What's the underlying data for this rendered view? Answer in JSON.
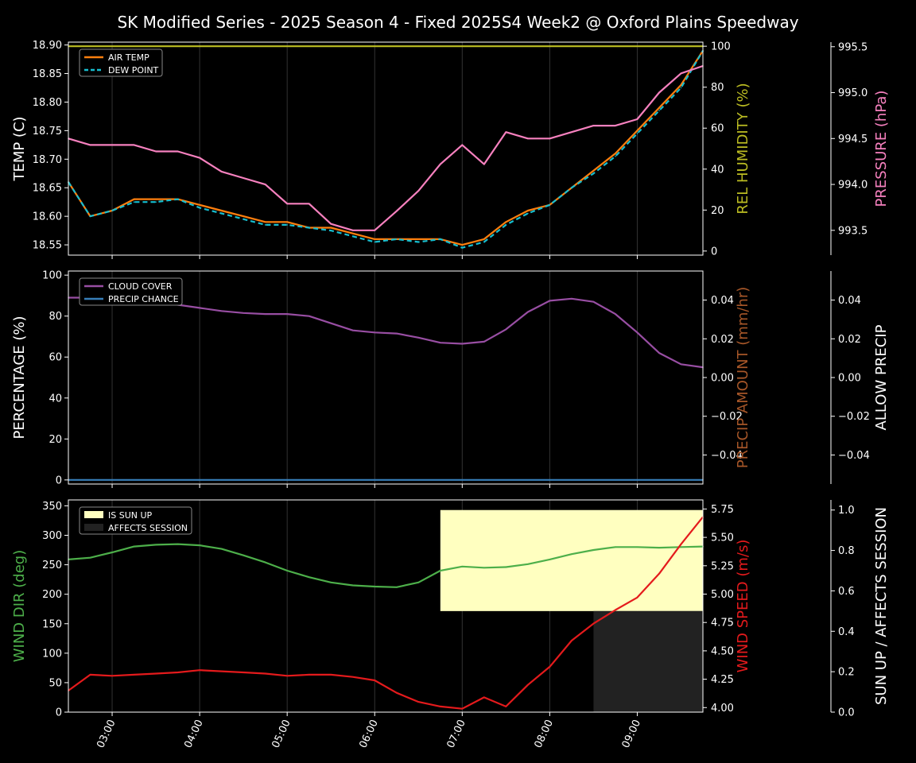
{
  "title": "SK Modified Series - 2025 Season 4 - Fixed 2025S4 Week2 @ Oxford Plains Speedway",
  "colors": {
    "background": "#000000",
    "axis": "#ffffff",
    "air_temp": "#ff7f0e",
    "dew_point": "#17becf",
    "humidity": "#bcbd22",
    "pressure": "#f781bf",
    "cloud": "#984ea3",
    "precip_chance": "#377eb8",
    "precip_amount": "#a65628",
    "wind_dir": "#4daf4a",
    "wind_speed": "#e41a1c",
    "sun_up": "#ffffc0",
    "affects_session": "#222222"
  },
  "chart_data": [
    {
      "type": "line",
      "panel": "weather",
      "x": [
        "02:30",
        "02:45",
        "03:00",
        "03:15",
        "03:30",
        "03:45",
        "04:00",
        "04:15",
        "04:30",
        "04:45",
        "05:00",
        "05:15",
        "05:30",
        "05:45",
        "06:00",
        "06:15",
        "06:30",
        "06:45",
        "07:00",
        "07:15",
        "07:30",
        "07:45",
        "08:00",
        "08:15",
        "08:30",
        "08:45",
        "09:00",
        "09:15",
        "09:30",
        "09:45"
      ],
      "xticks": [
        "03:00",
        "04:00",
        "05:00",
        "06:00",
        "07:00",
        "08:00",
        "09:00"
      ],
      "axes": {
        "left": {
          "label": "TEMP (C)",
          "ylim": [
            18.532,
            18.905
          ],
          "ticks": [
            "18.55",
            "18.60",
            "18.65",
            "18.70",
            "18.75",
            "18.80",
            "18.85",
            "18.90"
          ]
        },
        "right": {
          "label": "REL HUMIDITY (%)",
          "ylim": [
            -2,
            102
          ],
          "ticks": [
            "0",
            "20",
            "40",
            "60",
            "80",
            "100"
          ]
        },
        "right2": {
          "label": "PRESSURE (hPa)",
          "ylim": [
            993.23,
            995.55
          ],
          "ticks": [
            "993.5",
            "994.0",
            "994.5",
            "995.0",
            "995.5"
          ]
        }
      },
      "legend": {
        "placement": "top-left",
        "entries": [
          "AIR TEMP",
          "DEW POINT"
        ]
      },
      "series": [
        {
          "name": "AIR TEMP",
          "axis": "left",
          "color": "air_temp",
          "values": [
            18.66,
            18.6,
            18.61,
            18.63,
            18.63,
            18.63,
            18.62,
            18.61,
            18.6,
            18.59,
            18.59,
            18.58,
            18.58,
            18.57,
            18.56,
            18.56,
            18.56,
            18.56,
            18.55,
            18.56,
            18.59,
            18.61,
            18.62,
            18.65,
            18.68,
            18.71,
            18.75,
            18.79,
            18.83,
            18.89
          ]
        },
        {
          "name": "DEW POINT",
          "axis": "left",
          "color": "dew_point",
          "dashed": true,
          "values": [
            18.66,
            18.6,
            18.61,
            18.625,
            18.625,
            18.63,
            18.615,
            18.605,
            18.595,
            18.585,
            18.585,
            18.58,
            18.575,
            18.565,
            18.555,
            18.56,
            18.555,
            18.56,
            18.545,
            18.555,
            18.585,
            18.605,
            18.62,
            18.65,
            18.675,
            18.705,
            18.745,
            18.785,
            18.825,
            18.89
          ]
        },
        {
          "axis": "right",
          "color": "humidity",
          "values": [
            100,
            100,
            100,
            100,
            100,
            100,
            100,
            100,
            100,
            100,
            100,
            100,
            100,
            100,
            100,
            100,
            100,
            100,
            100,
            100,
            100,
            100,
            100,
            100,
            100,
            100,
            100,
            100,
            100,
            100
          ]
        },
        {
          "axis": "right2",
          "color": "pressure",
          "values": [
            994.5,
            994.43,
            994.43,
            994.43,
            994.36,
            994.36,
            994.29,
            994.14,
            994.07,
            994.0,
            993.79,
            993.79,
            993.57,
            993.5,
            993.5,
            993.71,
            993.93,
            994.22,
            994.43,
            994.22,
            994.57,
            994.5,
            994.5,
            994.57,
            994.64,
            994.64,
            994.71,
            995.0,
            995.21,
            995.29
          ]
        }
      ]
    },
    {
      "type": "line",
      "panel": "clouds",
      "x": [
        "02:30",
        "02:45",
        "03:00",
        "03:15",
        "03:30",
        "03:45",
        "04:00",
        "04:15",
        "04:30",
        "04:45",
        "05:00",
        "05:15",
        "05:30",
        "05:45",
        "06:00",
        "06:15",
        "06:30",
        "06:45",
        "07:00",
        "07:15",
        "07:30",
        "07:45",
        "08:00",
        "08:15",
        "08:30",
        "08:45",
        "09:00",
        "09:15",
        "09:30",
        "09:45"
      ],
      "axes": {
        "left": {
          "label": "PERCENTAGE (%)",
          "ylim": [
            -2,
            102
          ],
          "ticks": [
            "0",
            "20",
            "40",
            "60",
            "80",
            "100"
          ]
        },
        "right": {
          "label": "PRECIP AMOUNT (mm/hr)",
          "ylim": [
            -0.055,
            0.055
          ],
          "ticks": [
            "−0.04",
            "−0.02",
            "0.00",
            "0.02",
            "0.04"
          ]
        },
        "right2": {
          "label": "ALLOW PRECIP",
          "ylim": [
            -0.055,
            0.055
          ],
          "ticks": [
            "−0.04",
            "−0.02",
            "0.00",
            "0.02",
            "0.04"
          ]
        }
      },
      "legend": {
        "placement": "top-left",
        "entries": [
          "CLOUD COVER",
          "PRECIP CHANCE"
        ]
      },
      "series": [
        {
          "name": "CLOUD COVER",
          "axis": "left",
          "color": "cloud",
          "values": [
            89,
            89,
            89,
            88,
            87,
            85.5,
            84,
            82.5,
            81.5,
            81,
            81,
            80,
            76.5,
            73,
            72,
            71.5,
            69.5,
            67,
            66.5,
            67.5,
            73.5,
            82,
            87.5,
            88.5,
            87,
            81,
            72,
            62,
            56.5,
            55
          ]
        },
        {
          "name": "PRECIP CHANCE",
          "axis": "left",
          "color": "precip_chance",
          "values": [
            0,
            0,
            0,
            0,
            0,
            0,
            0,
            0,
            0,
            0,
            0,
            0,
            0,
            0,
            0,
            0,
            0,
            0,
            0,
            0,
            0,
            0,
            0,
            0,
            0,
            0,
            0,
            0,
            0,
            0
          ]
        }
      ]
    },
    {
      "type": "line",
      "panel": "wind",
      "x": [
        "02:30",
        "02:45",
        "03:00",
        "03:15",
        "03:30",
        "03:45",
        "04:00",
        "04:15",
        "04:30",
        "04:45",
        "05:00",
        "05:15",
        "05:30",
        "05:45",
        "06:00",
        "06:15",
        "06:30",
        "06:45",
        "07:00",
        "07:15",
        "07:30",
        "07:45",
        "08:00",
        "08:15",
        "08:30",
        "08:45",
        "09:00",
        "09:15",
        "09:30",
        "09:45"
      ],
      "axes": {
        "left": {
          "label": "WIND DIR (deg)",
          "ylim": [
            0,
            360
          ],
          "ticks": [
            "0",
            "50",
            "100",
            "150",
            "200",
            "250",
            "300",
            "350"
          ]
        },
        "right": {
          "label": "WIND SPEED (m/s)",
          "ylim": [
            3.96,
            5.83
          ],
          "ticks": [
            "4.00",
            "4.25",
            "4.50",
            "4.75",
            "5.00",
            "5.25",
            "5.50",
            "5.75"
          ]
        },
        "right2": {
          "label": "SUN UP / AFFECTS SESSION",
          "ylim": [
            0,
            1.05
          ],
          "ticks": [
            "0.0",
            "0.2",
            "0.4",
            "0.6",
            "0.8",
            "1.0"
          ]
        }
      },
      "legend": {
        "placement": "top-left",
        "entries": [
          "IS SUN UP",
          "AFFECTS SESSION"
        ]
      },
      "spans": [
        {
          "name": "IS SUN UP",
          "color": "sun_up",
          "from": "06:45",
          "to": "09:45",
          "value": 1.0,
          "base": 0.5
        },
        {
          "name": "AFFECTS SESSION",
          "color": "affects_session",
          "from": "08:30",
          "to": "09:45",
          "value": 0.5,
          "base": 0.0
        }
      ],
      "series": [
        {
          "axis": "left",
          "color": "wind_dir",
          "values": [
            259,
            262,
            271,
            281,
            284,
            285,
            283,
            277,
            266,
            254,
            240,
            229,
            220,
            215,
            213,
            212,
            220,
            240,
            247,
            245,
            246,
            251,
            259,
            268,
            275,
            280,
            280,
            279,
            280,
            281
          ]
        },
        {
          "axis": "right",
          "color": "wind_speed",
          "values": [
            4.15,
            4.29,
            4.28,
            4.29,
            4.3,
            4.31,
            4.33,
            4.32,
            4.31,
            4.3,
            4.28,
            4.29,
            4.29,
            4.27,
            4.24,
            4.13,
            4.05,
            4.01,
            3.99,
            4.09,
            4.01,
            4.2,
            4.36,
            4.59,
            4.74,
            4.86,
            4.97,
            5.18,
            5.44,
            5.68
          ]
        }
      ]
    }
  ]
}
